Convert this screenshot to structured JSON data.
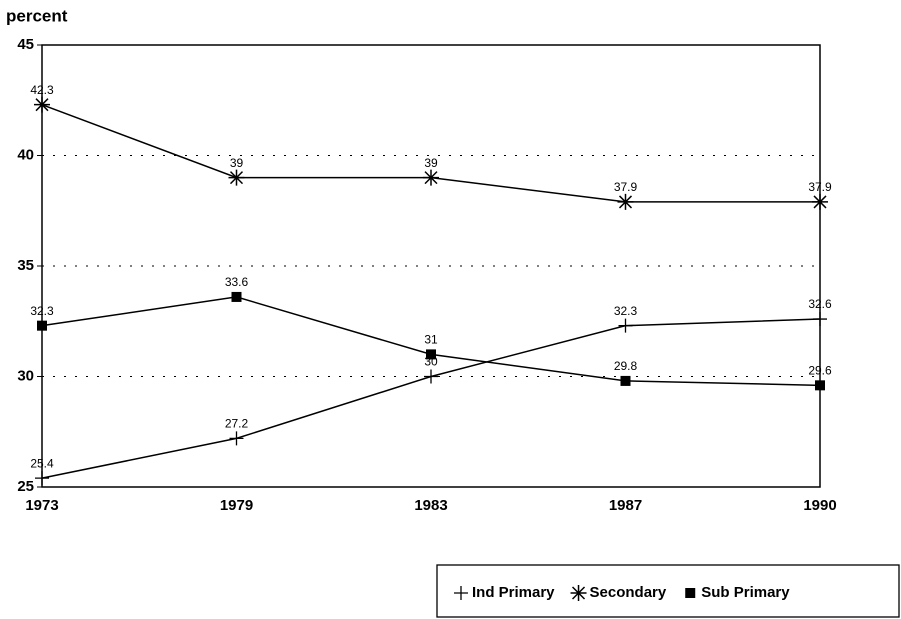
{
  "chart_data": {
    "type": "line",
    "y_label": "percent",
    "categories": [
      "1973",
      "1979",
      "1983",
      "1987",
      "1990"
    ],
    "series": [
      {
        "name": "Ind Primary",
        "color": "#000000",
        "marker": "plus",
        "values": [
          25.4,
          27.2,
          30,
          32.3,
          32.6
        ]
      },
      {
        "name": "Secondary",
        "color": "#000000",
        "marker": "asterisk",
        "values": [
          42.3,
          39,
          39,
          37.9,
          37.9
        ]
      },
      {
        "name": "Sub Primary",
        "color": "#000000",
        "marker": "square",
        "values": [
          32.3,
          33.6,
          31,
          29.8,
          29.6
        ]
      }
    ],
    "ylim": [
      25,
      45
    ],
    "yticks": [
      25,
      30,
      35,
      40,
      45
    ],
    "grid": true,
    "legend": "bottom-right"
  }
}
